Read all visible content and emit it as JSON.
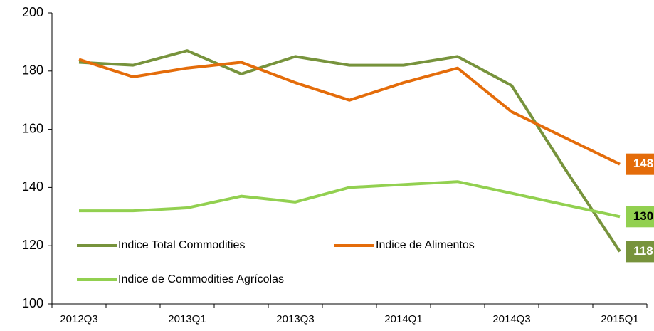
{
  "chart_data": {
    "type": "line",
    "categories": [
      "2012Q3",
      null,
      "2013Q1",
      null,
      "2013Q3",
      null,
      "2014Q1",
      null,
      "2014Q3",
      null,
      "2015Q1"
    ],
    "series": [
      {
        "name": "Indice Total Commodities",
        "color": "#77933c",
        "values": [
          183,
          182,
          187,
          179,
          185,
          182,
          182,
          185,
          175,
          146,
          118
        ]
      },
      {
        "name": "Indice de Alimentos",
        "color": "#e46c0a",
        "values": [
          184,
          178,
          181,
          183,
          176,
          170,
          176,
          181,
          166,
          157,
          148
        ]
      },
      {
        "name": "Indice de Commodities Agrícolas",
        "color": "#92d050",
        "values": [
          132,
          132,
          133,
          137,
          135,
          140,
          141,
          142,
          138,
          134,
          130
        ]
      }
    ],
    "ylim": [
      100,
      200
    ],
    "yticks": [
      100,
      120,
      140,
      160,
      180,
      200
    ],
    "grid": false,
    "legend": "bottom"
  }
}
